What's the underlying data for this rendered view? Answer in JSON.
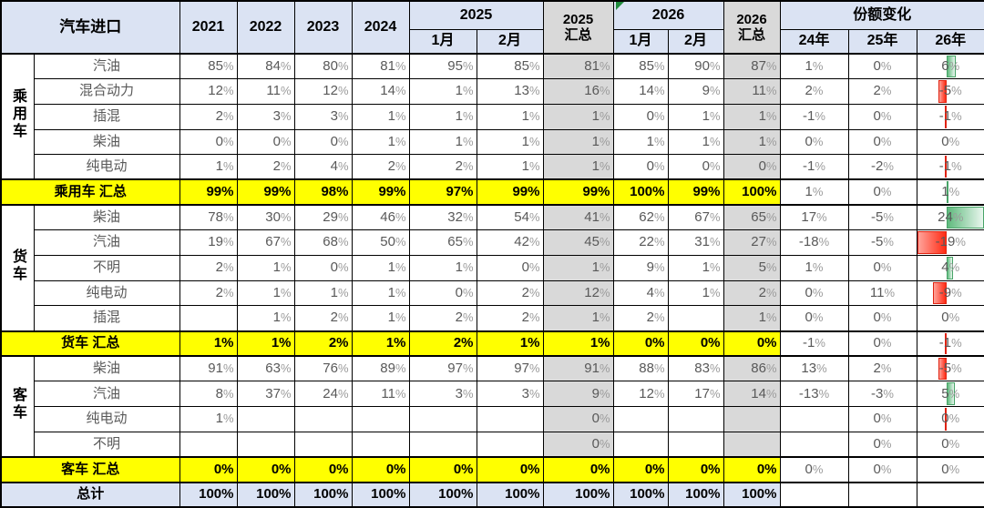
{
  "header": {
    "title": "汽车进口",
    "years": [
      "2021",
      "2022",
      "2023",
      "2024"
    ],
    "y2025": {
      "label": "2025",
      "months": [
        "1月",
        "2月"
      ]
    },
    "total2025": {
      "line1": "2025",
      "line2": "汇总"
    },
    "y2026": {
      "label": "2026",
      "months": [
        "1月",
        "2月"
      ],
      "has_note_marker": true
    },
    "total2026": {
      "line1": "2026",
      "line2": "汇总"
    },
    "share": {
      "label": "份额变化",
      "cols": [
        "24年",
        "25年",
        "26年"
      ]
    }
  },
  "colors": {
    "header_bg": "#dbe3f3",
    "summary_col_bg": "#d9d9d9",
    "subtotal_row_bg": "#ffff00",
    "bar_positive": "#5fba7d",
    "bar_negative": "#ff2b14",
    "note_marker": "#1f8a3b",
    "grid": "#000000",
    "value_text": "#595959"
  },
  "rows": [
    {
      "kind": "data",
      "group": "乘用车",
      "groupSpan": 5,
      "label": "汽油",
      "cells": [
        "85%",
        "84%",
        "80%",
        "81%",
        "95%",
        "85%",
        "81%",
        "85%",
        "90%",
        "87%",
        "1%",
        "0%",
        "6%"
      ],
      "bar": 6
    },
    {
      "kind": "data",
      "label": "混合动力",
      "cells": [
        "12%",
        "11%",
        "12%",
        "14%",
        "1%",
        "13%",
        "16%",
        "14%",
        "9%",
        "11%",
        "2%",
        "2%",
        "-5%"
      ],
      "bar": -5
    },
    {
      "kind": "data",
      "label": "插混",
      "cells": [
        "2%",
        "3%",
        "3%",
        "1%",
        "1%",
        "1%",
        "1%",
        "0%",
        "1%",
        "1%",
        "-1%",
        "0%",
        "-1%"
      ],
      "bar": -1
    },
    {
      "kind": "data",
      "label": "柴油",
      "cells": [
        "0%",
        "0%",
        "0%",
        "1%",
        "1%",
        "1%",
        "1%",
        "1%",
        "1%",
        "1%",
        "0%",
        "0%",
        "0%"
      ],
      "bar": 0
    },
    {
      "kind": "data",
      "label": "纯电动",
      "cells": [
        "1%",
        "2%",
        "4%",
        "2%",
        "2%",
        "1%",
        "1%",
        "0%",
        "0%",
        "0%",
        "-1%",
        "-2%",
        "-1%"
      ],
      "bar": -1
    },
    {
      "kind": "subtotal",
      "label": "乘用车 汇总",
      "cells": [
        "99%",
        "99%",
        "98%",
        "99%",
        "97%",
        "99%",
        "99%",
        "100%",
        "99%",
        "100%",
        "1%",
        "0%",
        "1%"
      ],
      "bar": 1
    },
    {
      "kind": "data",
      "group": "货车",
      "groupSpan": 5,
      "label": "柴油",
      "cells": [
        "78%",
        "30%",
        "29%",
        "46%",
        "32%",
        "54%",
        "41%",
        "62%",
        "67%",
        "65%",
        "17%",
        "-5%",
        "24%"
      ],
      "bar": 24
    },
    {
      "kind": "data",
      "label": "汽油",
      "cells": [
        "19%",
        "67%",
        "68%",
        "50%",
        "65%",
        "42%",
        "45%",
        "22%",
        "31%",
        "27%",
        "-18%",
        "-5%",
        "-19%"
      ],
      "bar": -19
    },
    {
      "kind": "data",
      "label": "不明",
      "cells": [
        "2%",
        "1%",
        "0%",
        "1%",
        "1%",
        "0%",
        "1%",
        "9%",
        "1%",
        "5%",
        "1%",
        "0%",
        "4%"
      ],
      "bar": 4
    },
    {
      "kind": "data",
      "label": "纯电动",
      "cells": [
        "2%",
        "1%",
        "1%",
        "1%",
        "0%",
        "2%",
        "12%",
        "4%",
        "1%",
        "2%",
        "0%",
        "11%",
        "-9%"
      ],
      "bar": -9
    },
    {
      "kind": "data",
      "label": "插混",
      "cells": [
        "",
        "1%",
        "2%",
        "1%",
        "2%",
        "2%",
        "1%",
        "2%",
        "",
        "1%",
        "0%",
        "0%",
        "0%"
      ],
      "bar": 0
    },
    {
      "kind": "subtotal",
      "label": "货车 汇总",
      "cells": [
        "1%",
        "1%",
        "2%",
        "1%",
        "2%",
        "1%",
        "1%",
        "0%",
        "0%",
        "0%",
        "-1%",
        "0%",
        "-1%"
      ],
      "bar": -1
    },
    {
      "kind": "data",
      "group": "客车",
      "groupSpan": 4,
      "label": "柴油",
      "cells": [
        "91%",
        "63%",
        "76%",
        "89%",
        "97%",
        "97%",
        "91%",
        "88%",
        "83%",
        "86%",
        "13%",
        "2%",
        "-5%"
      ],
      "bar": -5
    },
    {
      "kind": "data",
      "label": "汽油",
      "cells": [
        "8%",
        "37%",
        "24%",
        "11%",
        "3%",
        "3%",
        "9%",
        "12%",
        "17%",
        "14%",
        "-13%",
        "-3%",
        "5%"
      ],
      "bar": 5
    },
    {
      "kind": "data",
      "label": "纯电动",
      "cells": [
        "1%",
        "",
        "",
        "",
        "",
        "",
        "0%",
        "",
        "",
        "",
        "",
        "0%",
        "0%"
      ],
      "bar": -0.5
    },
    {
      "kind": "data",
      "label": "不明",
      "cells": [
        "",
        "",
        "",
        "",
        "",
        "",
        "0%",
        "",
        "",
        "",
        "",
        "0%",
        "0%"
      ],
      "bar": 0
    },
    {
      "kind": "subtotal",
      "label": "客车 汇总",
      "cells": [
        "0%",
        "0%",
        "0%",
        "0%",
        "0%",
        "0%",
        "0%",
        "0%",
        "0%",
        "0%",
        "0%",
        "0%",
        "0%"
      ],
      "bar": 0
    },
    {
      "kind": "total",
      "label": "总计",
      "cells": [
        "100%",
        "100%",
        "100%",
        "100%",
        "100%",
        "100%",
        "100%",
        "100%",
        "100%",
        "100%",
        "",
        "",
        ""
      ],
      "bar": null
    }
  ]
}
